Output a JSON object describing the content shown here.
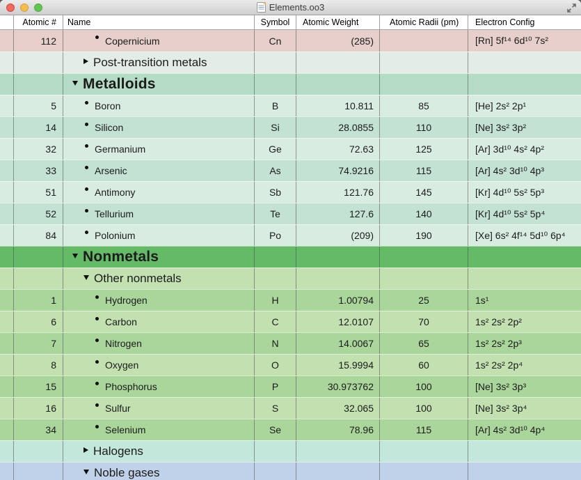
{
  "window": {
    "title": "Elements.oo3",
    "traffic_lights": [
      "close",
      "minimize",
      "zoom"
    ],
    "fullscreen_label": "enter-full-screen"
  },
  "colors": {
    "accent_pink": "#e7cfcb",
    "pale_green": "#e3ece6",
    "mint_header": "#b5dcc6",
    "mint_light": "#d9ece2",
    "mint_mid": "#c3e2d3",
    "green_header": "#65ba68",
    "green_light": "#c2e0b0",
    "green_mid": "#aad69c",
    "teal_halogens": "#c4e7db",
    "blue_noble": "#c0d2e9"
  },
  "table": {
    "columns": [
      {
        "label": "Atomic #"
      },
      {
        "label": "Name"
      },
      {
        "label": "Symbol"
      },
      {
        "label": "Atomic Weight"
      },
      {
        "label": "Atomic Radii (pm)"
      },
      {
        "label": "Electron Config"
      }
    ],
    "rows": [
      {
        "kind": "element",
        "indent": "deep",
        "bg": "pink",
        "num": "112",
        "name": "Copernicium",
        "symbol": "Cn",
        "weight": "(285)",
        "radii": "",
        "config": "[Rn] 5f¹⁴ 6d¹⁰ 7s²"
      },
      {
        "kind": "group2",
        "state": "collapsed",
        "bg": "pale",
        "name": "Post-transition metals"
      },
      {
        "kind": "group1",
        "state": "expanded",
        "bg": "mintHeader",
        "name": "Metalloids"
      },
      {
        "kind": "element",
        "indent": "mid",
        "bg": "mintLight",
        "num": "5",
        "name": "Boron",
        "symbol": "B",
        "weight": "10.811",
        "radii": "85",
        "config": "[He] 2s² 2p¹"
      },
      {
        "kind": "element",
        "indent": "mid",
        "bg": "mintMid",
        "num": "14",
        "name": "Silicon",
        "symbol": "Si",
        "weight": "28.0855",
        "radii": "110",
        "config": "[Ne] 3s² 3p²"
      },
      {
        "kind": "element",
        "indent": "mid",
        "bg": "mintLight",
        "num": "32",
        "name": "Germanium",
        "symbol": "Ge",
        "weight": "72.63",
        "radii": "125",
        "config": "[Ar] 3d¹⁰ 4s² 4p²"
      },
      {
        "kind": "element",
        "indent": "mid",
        "bg": "mintMid",
        "num": "33",
        "name": "Arsenic",
        "symbol": "As",
        "weight": "74.9216",
        "radii": "115",
        "config": "[Ar] 4s² 3d¹⁰ 4p³"
      },
      {
        "kind": "element",
        "indent": "mid",
        "bg": "mintLight",
        "num": "51",
        "name": "Antimony",
        "symbol": "Sb",
        "weight": "121.76",
        "radii": "145",
        "config": "[Kr] 4d¹⁰ 5s² 5p³"
      },
      {
        "kind": "element",
        "indent": "mid",
        "bg": "mintMid",
        "num": "52",
        "name": "Tellurium",
        "symbol": "Te",
        "weight": "127.6",
        "radii": "140",
        "config": "[Kr] 4d¹⁰ 5s² 5p⁴"
      },
      {
        "kind": "element",
        "indent": "mid",
        "bg": "mintLight",
        "num": "84",
        "name": "Polonium",
        "symbol": "Po",
        "weight": "(209)",
        "radii": "190",
        "config": "[Xe] 6s² 4f¹⁴ 5d¹⁰ 6p⁴"
      },
      {
        "kind": "group1",
        "state": "expanded",
        "bg": "greenHeader",
        "name": "Nonmetals"
      },
      {
        "kind": "group2",
        "state": "expanded",
        "bg": "greenLight",
        "name": "Other nonmetals"
      },
      {
        "kind": "element",
        "indent": "deep",
        "bg": "greenMid",
        "num": "1",
        "name": "Hydrogen",
        "symbol": "H",
        "weight": "1.00794",
        "radii": "25",
        "config": "1s¹"
      },
      {
        "kind": "element",
        "indent": "deep",
        "bg": "greenLight",
        "num": "6",
        "name": "Carbon",
        "symbol": "C",
        "weight": "12.0107",
        "radii": "70",
        "config": "1s² 2s² 2p²"
      },
      {
        "kind": "element",
        "indent": "deep",
        "bg": "greenMid",
        "num": "7",
        "name": "Nitrogen",
        "symbol": "N",
        "weight": "14.0067",
        "radii": "65",
        "config": "1s² 2s² 2p³"
      },
      {
        "kind": "element",
        "indent": "deep",
        "bg": "greenLight",
        "num": "8",
        "name": "Oxygen",
        "symbol": "O",
        "weight": "15.9994",
        "radii": "60",
        "config": "1s² 2s² 2p⁴"
      },
      {
        "kind": "element",
        "indent": "deep",
        "bg": "greenMid",
        "num": "15",
        "name": "Phosphorus",
        "symbol": "P",
        "weight": "30.973762",
        "radii": "100",
        "config": "[Ne] 3s² 3p³"
      },
      {
        "kind": "element",
        "indent": "deep",
        "bg": "greenLight",
        "num": "16",
        "name": "Sulfur",
        "symbol": "S",
        "weight": "32.065",
        "radii": "100",
        "config": "[Ne] 3s² 3p⁴"
      },
      {
        "kind": "element",
        "indent": "deep",
        "bg": "greenMid",
        "num": "34",
        "name": "Selenium",
        "symbol": "Se",
        "weight": "78.96",
        "radii": "115",
        "config": "[Ar] 4s² 3d¹⁰ 4p⁴"
      },
      {
        "kind": "group2",
        "state": "collapsed",
        "bg": "teal",
        "name": "Halogens"
      },
      {
        "kind": "group2",
        "state": "expanded",
        "bg": "blue",
        "name": "Noble gases"
      }
    ]
  }
}
